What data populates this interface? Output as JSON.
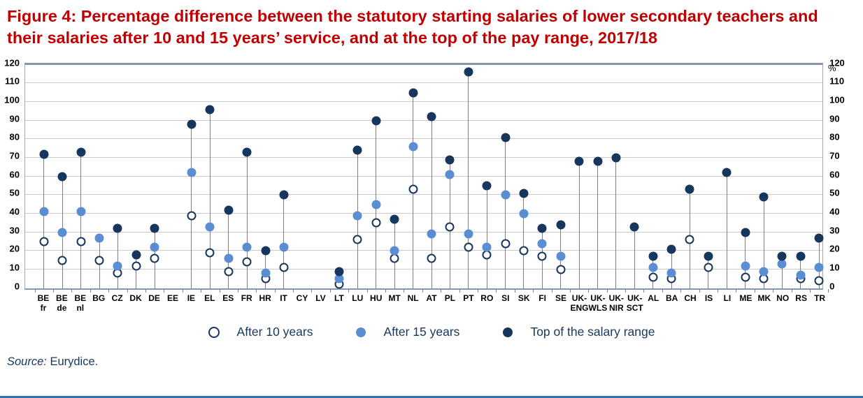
{
  "title": "Figure 4: Percentage difference between the statutory starting salaries of lower secondary teachers and their salaries after 10 and 15 years’ service, and at the top of the pay range, 2017/18",
  "axis": {
    "unit": "%",
    "ticks": [
      0,
      10,
      20,
      30,
      40,
      50,
      60,
      70,
      80,
      90,
      100,
      110,
      120
    ]
  },
  "legend": [
    {
      "label": "After 10 years"
    },
    {
      "label": "After 15 years"
    },
    {
      "label": "Top of the salary range"
    }
  ],
  "source": {
    "prefix": "Source:",
    "text": " Eurydice."
  },
  "colors": {
    "title": "#C00000",
    "after10_fill": "#FFFFFF",
    "after10_stroke": "#17365D",
    "after15": "#5B8DD3",
    "top_of_range": "#17365D",
    "legend_text": "#17375E",
    "bottom_rule": "#2E74B5"
  },
  "chart_data": {
    "type": "scatter",
    "title": "Percentage difference between starting salaries and salaries after 10/15 years and at top of pay range, lower secondary teachers, 2017/18",
    "ylabel": "%",
    "ylim": [
      0,
      120
    ],
    "grid": true,
    "legend_position": "bottom",
    "categories": [
      "BE\nfr",
      "BE\nde",
      "BE\nnl",
      "BG",
      "CZ",
      "DK",
      "DE",
      "EE",
      "IE",
      "EL",
      "ES",
      "FR",
      "HR",
      "IT",
      "CY",
      "LV",
      "LT",
      "LU",
      "HU",
      "MT",
      "NL",
      "AT",
      "PL",
      "PT",
      "RO",
      "SI",
      "SK",
      "FI",
      "SE",
      "UK-\nENG",
      "UK-\nWLS",
      "UK-\nNIR",
      "UK-\nSCT",
      "AL",
      "BA",
      "CH",
      "IS",
      "LI",
      "ME",
      "MK",
      "NO",
      "RS",
      "TR"
    ],
    "series": [
      {
        "name": "After 10 years",
        "values": [
          25,
          15,
          25,
          15,
          8,
          12,
          16,
          null,
          39,
          19,
          9,
          14,
          5,
          11,
          null,
          null,
          2,
          26,
          35,
          16,
          53,
          16,
          33,
          22,
          18,
          24,
          20,
          17,
          10,
          null,
          null,
          null,
          null,
          6,
          5,
          26,
          11,
          null,
          6,
          5,
          null,
          5,
          4
        ]
      },
      {
        "name": "After 15 years",
        "values": [
          41,
          30,
          41,
          27,
          12,
          null,
          22,
          null,
          62,
          33,
          16,
          22,
          8,
          22,
          null,
          null,
          5,
          39,
          45,
          20,
          76,
          29,
          61,
          29,
          22,
          50,
          40,
          24,
          17,
          null,
          null,
          null,
          null,
          11,
          8,
          null,
          null,
          null,
          12,
          9,
          13,
          7,
          11
        ]
      },
      {
        "name": "Top of the salary range",
        "values": [
          72,
          60,
          73,
          null,
          32,
          18,
          32,
          null,
          88,
          96,
          42,
          73,
          20,
          50,
          null,
          null,
          9,
          74,
          90,
          37,
          105,
          92,
          69,
          116,
          55,
          81,
          51,
          32,
          34,
          68,
          68,
          70,
          33,
          17,
          21,
          53,
          17,
          62,
          30,
          49,
          17,
          17,
          27
        ]
      }
    ]
  }
}
